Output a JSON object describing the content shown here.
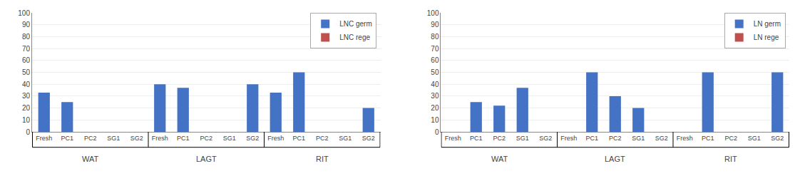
{
  "chart_data": [
    {
      "type": "bar",
      "categories": [
        "Fresh",
        "PC1",
        "PC2",
        "SG1",
        "SG2",
        "Fresh",
        "PC1",
        "PC2",
        "SG1",
        "SG2",
        "Fresh",
        "PC1",
        "PC2",
        "SG1",
        "SG2"
      ],
      "series": [
        {
          "name": "LNC germ",
          "color": "#4472C4",
          "values": [
            33,
            25,
            0,
            0,
            0,
            40,
            37,
            0,
            0,
            40,
            33,
            50,
            0,
            0,
            20
          ]
        },
        {
          "name": "LNC rege",
          "color": "#C0504D",
          "values": [
            0,
            0,
            0,
            0,
            0,
            0,
            0,
            0,
            0,
            0,
            0,
            0,
            0,
            0,
            0
          ]
        }
      ],
      "ylim": [
        0,
        100
      ],
      "yticks": [
        0,
        10,
        20,
        30,
        40,
        50,
        60,
        70,
        80,
        90,
        100
      ],
      "grid": true,
      "legend": "upper right",
      "annotations": [
        {
          "text": "WAT",
          "x": 2
        },
        {
          "text": "LAGT",
          "x": 7
        },
        {
          "text": "RIT",
          "x": 12
        }
      ]
    },
    {
      "type": "bar",
      "categories": [
        "Fresh",
        "PC1",
        "PC2",
        "SG1",
        "SG2",
        "Fresh",
        "PC1",
        "PC2",
        "SG1",
        "SG2",
        "Fresh",
        "PC1",
        "PC2",
        "SG1",
        "SG2"
      ],
      "series": [
        {
          "name": "LN germ",
          "color": "#4472C4",
          "values": [
            0,
            25,
            22,
            37,
            0,
            0,
            50,
            30,
            20,
            0,
            0,
            50,
            0,
            0,
            50
          ]
        },
        {
          "name": "LN rege",
          "color": "#C0504D",
          "values": [
            0,
            0,
            0,
            0,
            0,
            0,
            0,
            0,
            0,
            0,
            0,
            0,
            0,
            0,
            0
          ]
        }
      ],
      "ylim": [
        0,
        100
      ],
      "yticks": [
        0,
        10,
        20,
        30,
        40,
        50,
        60,
        70,
        80,
        90,
        100
      ],
      "grid": true,
      "legend": "upper right",
      "annotations": [
        {
          "text": "WAT",
          "x": 2
        },
        {
          "text": "LAGT",
          "x": 7
        },
        {
          "text": "RIT",
          "x": 12
        }
      ]
    }
  ]
}
